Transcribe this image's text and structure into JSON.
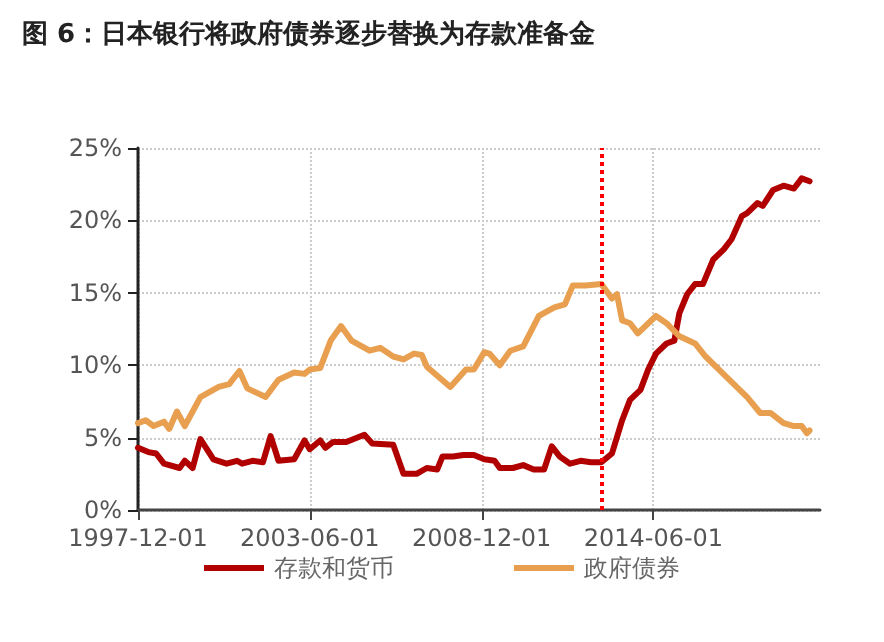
{
  "chart_data": {
    "type": "line",
    "title": "图 6：日本银行将政府债券逐步替换为存款准备金",
    "xlim": [
      "1997-12",
      "2019-10"
    ],
    "xticks": [
      "1997-12-01",
      "2003-06-01",
      "2008-12-01",
      "2014-06-01"
    ],
    "ylim": [
      0,
      25
    ],
    "yticks": [
      {
        "value": 0,
        "label": "0%"
      },
      {
        "value": 5,
        "label": "5%"
      },
      {
        "value": 10,
        "label": "10%"
      },
      {
        "value": 15,
        "label": "15%"
      },
      {
        "value": 20,
        "label": "20%"
      },
      {
        "value": 25,
        "label": "25%"
      }
    ],
    "grid": true,
    "legend": "bottom",
    "marker": "none",
    "line_style": "solid",
    "ref_lines": [
      {
        "axis": "x",
        "value": "2012-10",
        "color": "#ff0000",
        "line_style": "dotted"
      }
    ],
    "series": [
      {
        "name": "存款和货币",
        "color": "#b00000",
        "x": [
          "1997-12",
          "1998-04",
          "1998-07",
          "1998-10",
          "1999-04",
          "1999-06",
          "1999-09",
          "1999-12",
          "2000-05",
          "2000-10",
          "2001-02",
          "2001-04",
          "2001-08",
          "2001-12",
          "2002-03",
          "2002-06",
          "2002-12",
          "2003-04",
          "2003-06",
          "2003-10",
          "2003-12",
          "2004-03",
          "2004-08",
          "2005-03",
          "2005-06",
          "2006-02",
          "2006-06",
          "2006-11",
          "2007-03",
          "2007-07",
          "2007-09",
          "2008-01",
          "2008-05",
          "2008-09",
          "2009-01",
          "2009-05",
          "2009-07",
          "2009-12",
          "2010-04",
          "2010-08",
          "2010-12",
          "2011-03",
          "2011-06",
          "2011-10",
          "2012-02",
          "2012-06",
          "2012-10",
          "2013-02",
          "2013-06",
          "2013-09",
          "2014-01",
          "2014-04",
          "2014-07",
          "2014-11",
          "2015-02",
          "2015-04",
          "2015-07",
          "2015-10",
          "2016-01",
          "2016-05",
          "2016-09",
          "2016-12",
          "2017-04",
          "2017-06",
          "2017-10",
          "2017-12",
          "2018-04",
          "2018-08",
          "2018-12",
          "2019-03",
          "2019-06"
        ],
        "values": [
          4.3,
          4.0,
          3.9,
          3.2,
          2.9,
          3.4,
          2.9,
          4.9,
          3.5,
          3.2,
          3.4,
          3.2,
          3.4,
          3.3,
          5.1,
          3.4,
          3.5,
          4.8,
          4.2,
          4.8,
          4.3,
          4.7,
          4.7,
          5.2,
          4.6,
          4.5,
          2.5,
          2.5,
          2.9,
          2.8,
          3.7,
          3.7,
          3.8,
          3.8,
          3.5,
          3.4,
          2.9,
          2.9,
          3.1,
          2.8,
          2.8,
          4.4,
          3.7,
          3.2,
          3.4,
          3.3,
          3.3,
          3.9,
          6.2,
          7.6,
          8.3,
          9.7,
          10.8,
          11.5,
          11.7,
          13.6,
          14.9,
          15.6,
          15.6,
          17.3,
          18.0,
          18.7,
          20.3,
          20.5,
          21.2,
          21.0,
          22.1,
          22.4,
          22.2,
          22.9,
          22.7
        ]
      },
      {
        "name": "政府债券",
        "color": "#e8a050",
        "x": [
          "1997-12",
          "1998-03",
          "1998-06",
          "1998-10",
          "1998-12",
          "1999-03",
          "1999-06",
          "1999-12",
          "2000-07",
          "2000-11",
          "2001-03",
          "2001-06",
          "2002-01",
          "2002-06",
          "2002-12",
          "2003-04",
          "2003-06",
          "2003-10",
          "2004-02",
          "2004-06",
          "2004-10",
          "2005-05",
          "2005-09",
          "2006-02",
          "2006-06",
          "2006-10",
          "2007-01",
          "2007-03",
          "2007-12",
          "2008-06",
          "2008-09",
          "2009-01",
          "2009-03",
          "2009-07",
          "2009-11",
          "2010-04",
          "2010-10",
          "2011-04",
          "2011-08",
          "2011-11",
          "2012-04",
          "2012-10",
          "2013-02",
          "2013-04",
          "2013-06",
          "2013-09",
          "2013-12",
          "2014-07",
          "2014-11",
          "2015-04",
          "2015-10",
          "2016-02",
          "2016-10",
          "2017-06",
          "2017-11",
          "2018-03",
          "2018-08",
          "2018-12",
          "2019-03",
          "2019-05",
          "2019-06"
        ],
        "values": [
          6.0,
          6.2,
          5.8,
          6.1,
          5.6,
          6.8,
          5.8,
          7.8,
          8.5,
          8.7,
          9.6,
          8.4,
          7.8,
          9.0,
          9.5,
          9.4,
          9.7,
          9.8,
          11.7,
          12.7,
          11.7,
          11.0,
          11.2,
          10.6,
          10.4,
          10.8,
          10.7,
          9.9,
          8.5,
          9.7,
          9.7,
          10.9,
          10.8,
          10.0,
          11.0,
          11.3,
          13.4,
          14.0,
          14.2,
          15.5,
          15.5,
          15.6,
          14.6,
          14.9,
          13.1,
          12.9,
          12.2,
          13.4,
          12.9,
          12.0,
          11.5,
          10.6,
          9.2,
          7.8,
          6.7,
          6.7,
          6.0,
          5.8,
          5.8,
          5.3,
          5.5
        ]
      }
    ]
  }
}
